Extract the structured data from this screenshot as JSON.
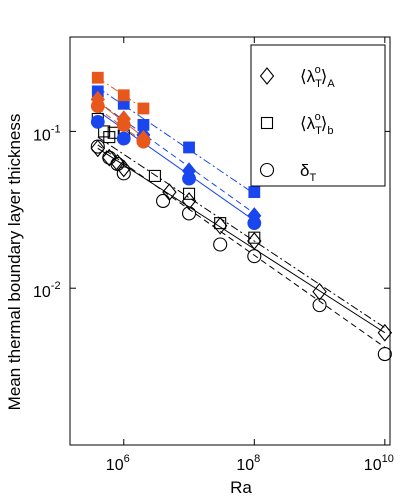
{
  "chart_data": {
    "type": "scatter",
    "title": "",
    "xlabel": "Ra",
    "ylabel": "Mean thermal boundary layer thickness",
    "xscale": "log",
    "yscale": "log",
    "xlim": [
      150000,
      12000000000
    ],
    "ylim": [
      0.001,
      0.4
    ],
    "xticks": [
      {
        "value": 1000000,
        "base": "10",
        "exp": "6"
      },
      {
        "value": 100000000,
        "base": "10",
        "exp": "8"
      },
      {
        "value": 10000000000,
        "base": "10",
        "exp": "10"
      }
    ],
    "yticks": [
      {
        "value": 0.1,
        "base": "10",
        "exp": "-1"
      },
      {
        "value": 0.01,
        "base": "10",
        "exp": "-2"
      }
    ],
    "grid": false,
    "legend": {
      "position": "top-right",
      "entries": [
        {
          "marker": "diamond",
          "base": "⟨λ",
          "sub": "T",
          "sup": "o",
          "close": "⟩",
          "tail": "A"
        },
        {
          "marker": "square",
          "base": "⟨λ",
          "sub": "T",
          "sup": "o",
          "close": "⟩",
          "tail": "b"
        },
        {
          "marker": "circle",
          "base": "δ",
          "sub": "T",
          "sup": "",
          "close": "",
          "tail": ""
        }
      ]
    },
    "colors": {
      "black": "#000000",
      "blue": "#1a46f0",
      "orange": "#e8581b"
    },
    "series": [
      {
        "marker": "diamond",
        "color": "black",
        "filled": false,
        "x": [
          400000,
          600000,
          800000,
          1000000,
          5000000,
          10000000,
          30000000,
          100000000,
          1000000000,
          10000000000
        ],
        "y": [
          0.078,
          0.068,
          0.063,
          0.058,
          0.041,
          0.036,
          0.025,
          0.02,
          0.0095,
          0.0052
        ]
      },
      {
        "marker": "square",
        "color": "black",
        "filled": false,
        "x": [
          400000,
          500000,
          600000,
          700000,
          1000000,
          3000000,
          10000000,
          30000000,
          100000000
        ],
        "y": [
          0.12,
          0.1,
          0.092,
          0.098,
          0.094,
          0.052,
          0.04,
          0.026,
          0.021
        ]
      },
      {
        "marker": "circle",
        "color": "black",
        "filled": false,
        "x": [
          400000,
          600000,
          800000,
          1000000,
          4000000,
          10000000,
          30000000,
          100000000,
          1000000000,
          10000000000
        ],
        "y": [
          0.08,
          0.068,
          0.062,
          0.054,
          0.036,
          0.03,
          0.019,
          0.016,
          0.0078,
          0.0038
        ]
      },
      {
        "marker": "diamond",
        "color": "blue",
        "filled": true,
        "x": [
          400000,
          1000000,
          2000000,
          10000000,
          100000000
        ],
        "y": [
          0.16,
          0.12,
          0.095,
          0.056,
          0.029
        ]
      },
      {
        "marker": "square",
        "color": "blue",
        "filled": true,
        "x": [
          400000,
          1000000,
          2000000,
          10000000,
          100000000
        ],
        "y": [
          0.18,
          0.15,
          0.11,
          0.079,
          0.041
        ]
      },
      {
        "marker": "circle",
        "color": "blue",
        "filled": true,
        "x": [
          400000,
          1000000,
          2000000,
          10000000,
          100000000
        ],
        "y": [
          0.115,
          0.09,
          0.088,
          0.05,
          0.026
        ]
      },
      {
        "marker": "diamond",
        "color": "orange",
        "filled": true,
        "x": [
          400000,
          1000000,
          2000000
        ],
        "y": [
          0.16,
          0.12,
          0.09
        ]
      },
      {
        "marker": "square",
        "color": "orange",
        "filled": true,
        "x": [
          400000,
          1000000,
          2000000
        ],
        "y": [
          0.22,
          0.17,
          0.14
        ]
      },
      {
        "marker": "circle",
        "color": "orange",
        "filled": true,
        "x": [
          400000,
          1000000,
          2000000
        ],
        "y": [
          0.145,
          0.11,
          0.086
        ]
      }
    ],
    "fits": [
      {
        "color": "black",
        "style": "solid",
        "x": [
          400000,
          10000000000
        ],
        "y": [
          0.078,
          0.0052
        ]
      },
      {
        "color": "black",
        "style": "dashdot",
        "x": [
          400000,
          10000000000
        ],
        "y": [
          0.092,
          0.0056
        ]
      },
      {
        "color": "black",
        "style": "dashed",
        "x": [
          400000,
          10000000000
        ],
        "y": [
          0.082,
          0.0042
        ]
      },
      {
        "color": "blue",
        "style": "solid",
        "x": [
          400000,
          100000000
        ],
        "y": [
          0.135,
          0.027
        ]
      },
      {
        "color": "blue",
        "style": "dashdot",
        "x": [
          400000,
          100000000
        ],
        "y": [
          0.19,
          0.04
        ]
      },
      {
        "color": "blue",
        "style": "dashed",
        "x": [
          400000,
          100000000
        ],
        "y": [
          0.155,
          0.03
        ]
      },
      {
        "color": "orange",
        "style": "solid",
        "x": [
          400000,
          2000000
        ],
        "y": [
          0.155,
          0.092
        ]
      },
      {
        "color": "orange",
        "style": "dashdot",
        "x": [
          400000,
          2000000
        ],
        "y": [
          0.22,
          0.14
        ]
      },
      {
        "color": "orange",
        "style": "dashed",
        "x": [
          400000,
          2000000
        ],
        "y": [
          0.14,
          0.086
        ]
      }
    ]
  }
}
